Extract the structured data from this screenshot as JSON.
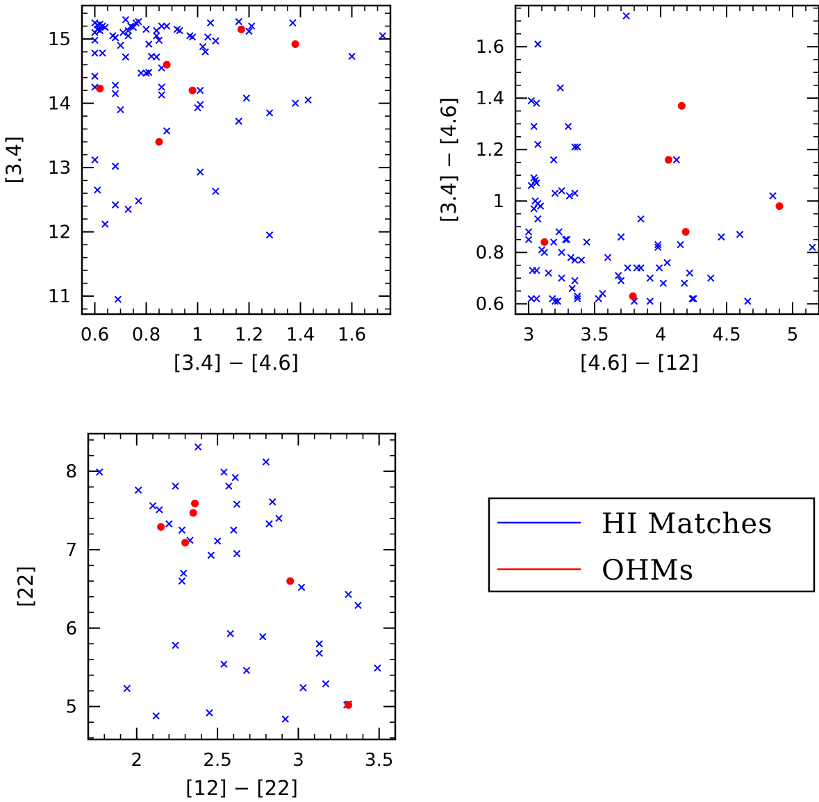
{
  "chart_data": [
    {
      "type": "scatter",
      "xlabel": "[3.4] − [4.6]",
      "ylabel": "[3.4]",
      "xlim": [
        0.55,
        1.75
      ],
      "ylim": [
        10.72,
        15.52
      ],
      "xticks": [
        0.6,
        0.8,
        1,
        1.2,
        1.4,
        1.6
      ],
      "xtick_labels": [
        "0.6",
        "0.8",
        "1",
        "1.2",
        "1.4",
        "1.6"
      ],
      "xminor": 0.05,
      "yticks": [
        11,
        12,
        13,
        14,
        15
      ],
      "ytick_labels": [
        "11",
        "12",
        "13",
        "14",
        "15"
      ],
      "yminor": 0.2,
      "series": [
        {
          "legend": "HI Matches",
          "marker": "x",
          "color": "#0000ff",
          "points": [
            [
              0.6,
              15.25
            ],
            [
              0.61,
              15.22
            ],
            [
              0.62,
              15.23
            ],
            [
              0.63,
              15.2
            ],
            [
              0.61,
              15.15
            ],
            [
              0.6,
              15.1
            ],
            [
              0.62,
              15.13
            ],
            [
              0.64,
              15.18
            ],
            [
              0.6,
              14.98
            ],
            [
              0.6,
              14.78
            ],
            [
              0.63,
              14.78
            ],
            [
              0.6,
              14.42
            ],
            [
              0.6,
              14.25
            ],
            [
              0.67,
              15.05
            ],
            [
              0.68,
              15.02
            ],
            [
              0.7,
              14.9
            ],
            [
              0.71,
              15.1
            ],
            [
              0.72,
              15.3
            ],
            [
              0.73,
              15.13
            ],
            [
              0.74,
              15.2
            ],
            [
              0.75,
              15.18
            ],
            [
              0.76,
              15.25
            ],
            [
              0.77,
              15.27
            ],
            [
              0.72,
              14.72
            ],
            [
              0.73,
              15.05
            ],
            [
              0.8,
              15.15
            ],
            [
              0.81,
              14.92
            ],
            [
              0.82,
              14.73
            ],
            [
              0.84,
              14.72
            ],
            [
              0.84,
              15.05
            ],
            [
              0.85,
              14.98
            ],
            [
              0.84,
              15.13
            ],
            [
              0.86,
              15.2
            ],
            [
              0.88,
              15.2
            ],
            [
              0.78,
              14.47
            ],
            [
              0.8,
              14.47
            ],
            [
              0.81,
              14.48
            ],
            [
              0.86,
              14.55
            ],
            [
              0.86,
              14.25
            ],
            [
              0.86,
              14.13
            ],
            [
              0.92,
              15.15
            ],
            [
              0.93,
              15.13
            ],
            [
              0.97,
              15.05
            ],
            [
              0.98,
              15.03
            ],
            [
              1.02,
              14.88
            ],
            [
              1.03,
              14.8
            ],
            [
              1.04,
              15.03
            ],
            [
              1.05,
              15.25
            ],
            [
              1.07,
              14.97
            ],
            [
              1.01,
              14.2
            ],
            [
              1.0,
              13.93
            ],
            [
              1.01,
              13.98
            ],
            [
              0.88,
              13.57
            ],
            [
              0.68,
              14.15
            ],
            [
              0.68,
              14.28
            ],
            [
              0.7,
              13.9
            ],
            [
              0.6,
              13.12
            ],
            [
              0.61,
              12.65
            ],
            [
              0.64,
              12.12
            ],
            [
              0.68,
              13.02
            ],
            [
              0.68,
              12.42
            ],
            [
              0.73,
              12.35
            ],
            [
              0.77,
              12.48
            ],
            [
              0.69,
              10.95
            ],
            [
              1.01,
              12.93
            ],
            [
              1.07,
              12.63
            ],
            [
              1.16,
              15.27
            ],
            [
              1.21,
              15.2
            ],
            [
              1.2,
              15.12
            ],
            [
              1.16,
              13.72
            ],
            [
              1.19,
              14.08
            ],
            [
              1.28,
              13.85
            ],
            [
              1.28,
              11.95
            ],
            [
              1.37,
              15.25
            ],
            [
              1.38,
              14.0
            ],
            [
              1.43,
              14.05
            ],
            [
              1.6,
              14.73
            ],
            [
              1.72,
              15.05
            ]
          ]
        },
        {
          "legend": "OHMs",
          "marker": "dot",
          "color": "#ff0000",
          "points": [
            [
              0.62,
              14.23
            ],
            [
              0.85,
              13.4
            ],
            [
              0.88,
              14.6
            ],
            [
              0.98,
              14.2
            ],
            [
              1.17,
              15.15
            ],
            [
              1.38,
              14.92
            ]
          ]
        }
      ]
    },
    {
      "type": "scatter",
      "xlabel": "[4.6] − [12]",
      "ylabel": "[3.4] − [4.6]",
      "xlim": [
        2.9,
        5.2
      ],
      "ylim": [
        0.56,
        1.76
      ],
      "xticks": [
        3,
        3.5,
        4,
        4.5,
        5
      ],
      "xtick_labels": [
        "3",
        "3.5",
        "4",
        "4.5",
        "5"
      ],
      "xminor": 0.1,
      "yticks": [
        0.6,
        0.8,
        1,
        1.2,
        1.4,
        1.6
      ],
      "ytick_labels": [
        "0.6",
        "0.8",
        "1",
        "1.2",
        "1.4",
        "1.6"
      ],
      "yminor": 0.05,
      "series": [
        {
          "legend": "HI Matches",
          "marker": "x",
          "color": "#0000ff",
          "points": [
            [
              3.74,
              1.72
            ],
            [
              3.07,
              1.61
            ],
            [
              3.24,
              1.44
            ],
            [
              3.02,
              1.39
            ],
            [
              3.06,
              1.38
            ],
            [
              3.04,
              1.29
            ],
            [
              3.3,
              1.29
            ],
            [
              3.07,
              1.22
            ],
            [
              3.35,
              1.21
            ],
            [
              3.37,
              1.21
            ],
            [
              3.19,
              1.16
            ],
            [
              3.04,
              1.09
            ],
            [
              3.05,
              1.08
            ],
            [
              3.02,
              1.06
            ],
            [
              3.06,
              1.07
            ],
            [
              3.25,
              1.04
            ],
            [
              3.2,
              1.03
            ],
            [
              3.35,
              1.03
            ],
            [
              3.31,
              1.02
            ],
            [
              3.05,
              1.0
            ],
            [
              3.07,
              0.99
            ],
            [
              3.09,
              0.98
            ],
            [
              3.04,
              0.97
            ],
            [
              3.07,
              0.93
            ],
            [
              3.0,
              0.88
            ],
            [
              3.0,
              0.85
            ],
            [
              3.1,
              0.81
            ],
            [
              3.12,
              0.8
            ],
            [
              3.19,
              0.84
            ],
            [
              3.23,
              0.88
            ],
            [
              3.28,
              0.85
            ],
            [
              3.29,
              0.85
            ],
            [
              3.25,
              0.8
            ],
            [
              3.32,
              0.78
            ],
            [
              3.35,
              0.77
            ],
            [
              3.44,
              0.84
            ],
            [
              3.4,
              0.77
            ],
            [
              3.06,
              0.73
            ],
            [
              3.03,
              0.73
            ],
            [
              3.15,
              0.72
            ],
            [
              3.25,
              0.7
            ],
            [
              3.35,
              0.69
            ],
            [
              3.33,
              0.66
            ],
            [
              3.06,
              0.62
            ],
            [
              3.18,
              0.62
            ],
            [
              3.2,
              0.61
            ],
            [
              3.22,
              0.61
            ],
            [
              3.37,
              0.63
            ],
            [
              3.37,
              0.62
            ],
            [
              3.02,
              0.62
            ],
            [
              3.6,
              0.78
            ],
            [
              3.7,
              0.86
            ],
            [
              3.68,
              0.71
            ],
            [
              3.7,
              0.69
            ],
            [
              3.75,
              0.74
            ],
            [
              3.82,
              0.74
            ],
            [
              3.85,
              0.74
            ],
            [
              3.85,
              0.93
            ],
            [
              3.98,
              0.83
            ],
            [
              3.98,
              0.82
            ],
            [
              3.92,
              0.7
            ],
            [
              3.99,
              0.74
            ],
            [
              4.05,
              0.76
            ],
            [
              4.02,
              0.68
            ],
            [
              4.15,
              0.83
            ],
            [
              4.12,
              1.16
            ],
            [
              4.18,
              0.68
            ],
            [
              4.22,
              0.72
            ],
            [
              4.24,
              0.62
            ],
            [
              4.25,
              0.62
            ],
            [
              4.38,
              0.7
            ],
            [
              4.46,
              0.86
            ],
            [
              4.6,
              0.87
            ],
            [
              4.66,
              0.61
            ],
            [
              4.85,
              1.02
            ],
            [
              3.53,
              0.62
            ],
            [
              3.56,
              0.64
            ],
            [
              3.8,
              0.61
            ],
            [
              3.92,
              0.61
            ],
            [
              5.15,
              0.82
            ]
          ]
        },
        {
          "legend": "OHMs",
          "marker": "dot",
          "color": "#ff0000",
          "points": [
            [
              3.12,
              0.84
            ],
            [
              3.79,
              0.63
            ],
            [
              4.06,
              1.16
            ],
            [
              4.16,
              1.37
            ],
            [
              4.19,
              0.88
            ],
            [
              4.9,
              0.98
            ]
          ]
        }
      ]
    },
    {
      "type": "scatter",
      "xlabel": "[12] − [22]",
      "ylabel": "[22]",
      "xlim": [
        1.7,
        3.6
      ],
      "ylim": [
        4.58,
        8.48
      ],
      "xticks": [
        2,
        2.5,
        3,
        3.5
      ],
      "xtick_labels": [
        "2",
        "2.5",
        "3",
        "3.5"
      ],
      "xminor": 0.1,
      "yticks": [
        5,
        6,
        7,
        8
      ],
      "ytick_labels": [
        "5",
        "6",
        "7",
        "8"
      ],
      "yminor": 0.2,
      "series": [
        {
          "legend": "HI Matches",
          "marker": "x",
          "color": "#0000ff",
          "points": [
            [
              1.77,
              7.99
            ],
            [
              2.01,
              7.76
            ],
            [
              2.1,
              7.56
            ],
            [
              2.14,
              7.51
            ],
            [
              2.2,
              7.33
            ],
            [
              2.24,
              7.81
            ],
            [
              2.28,
              7.25
            ],
            [
              2.33,
              7.12
            ],
            [
              2.29,
              6.7
            ],
            [
              2.28,
              6.6
            ],
            [
              2.38,
              8.31
            ],
            [
              2.54,
              7.99
            ],
            [
              2.57,
              7.81
            ],
            [
              2.61,
              7.92
            ],
            [
              2.62,
              7.58
            ],
            [
              2.6,
              7.25
            ],
            [
              2.5,
              7.11
            ],
            [
              2.46,
              6.93
            ],
            [
              2.62,
              6.95
            ],
            [
              2.8,
              8.12
            ],
            [
              2.82,
              7.33
            ],
            [
              2.84,
              7.61
            ],
            [
              2.88,
              7.4
            ],
            [
              2.24,
              5.78
            ],
            [
              2.58,
              5.93
            ],
            [
              2.54,
              5.54
            ],
            [
              2.78,
              5.89
            ],
            [
              2.68,
              5.46
            ],
            [
              3.02,
              6.52
            ],
            [
              3.03,
              5.24
            ],
            [
              3.13,
              5.8
            ],
            [
              3.13,
              5.68
            ],
            [
              3.17,
              5.29
            ],
            [
              3.31,
              6.43
            ],
            [
              3.37,
              6.29
            ],
            [
              3.49,
              5.49
            ],
            [
              3.3,
              5.02
            ],
            [
              3.31,
              5.03
            ],
            [
              1.94,
              5.23
            ],
            [
              2.12,
              4.88
            ],
            [
              2.45,
              4.92
            ],
            [
              2.92,
              4.84
            ]
          ]
        },
        {
          "legend": "OHMs",
          "marker": "dot",
          "color": "#ff0000",
          "points": [
            [
              2.15,
              7.29
            ],
            [
              2.3,
              7.09
            ],
            [
              2.35,
              7.47
            ],
            [
              2.36,
              7.59
            ],
            [
              2.95,
              6.6
            ],
            [
              3.31,
              5.02
            ]
          ]
        }
      ]
    }
  ],
  "legend": {
    "entries": [
      {
        "label": "HI Matches",
        "color": "#0000ff"
      },
      {
        "label": "OHMs",
        "color": "#ff0000"
      }
    ]
  }
}
